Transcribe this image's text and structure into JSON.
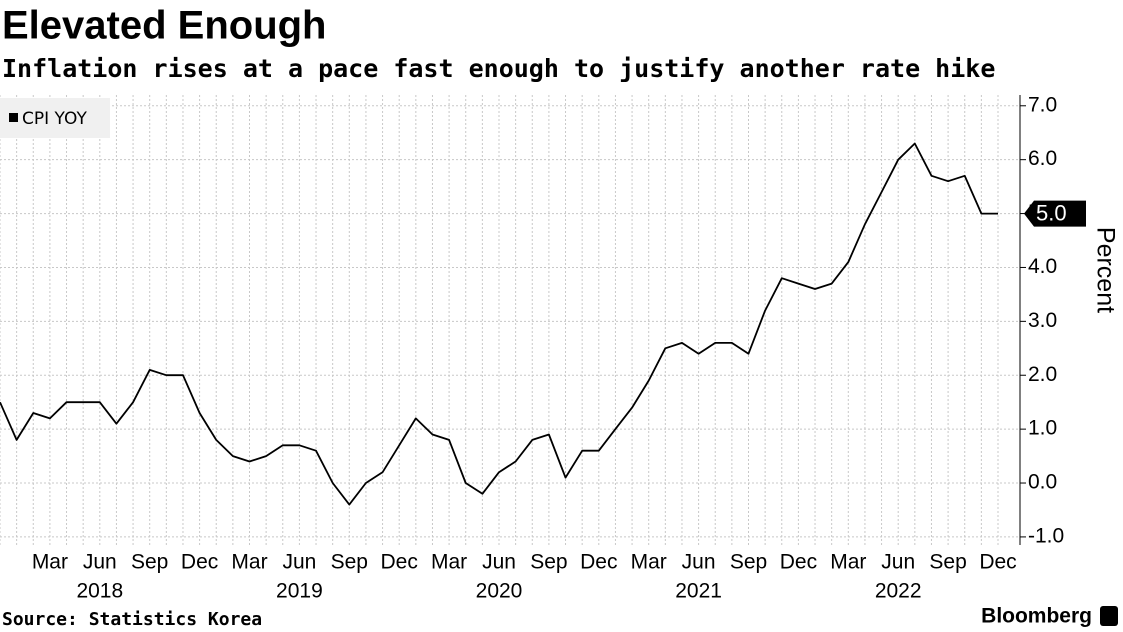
{
  "chart_data": {
    "type": "line",
    "title": "Elevated Enough",
    "subtitle": "Inflation rises at a pace fast enough to justify another rate hike",
    "categories": [
      null,
      null,
      null,
      "Mar",
      null,
      null,
      "Jun",
      null,
      null,
      "Sep",
      null,
      null,
      "Dec",
      null,
      null,
      "Mar",
      null,
      null,
      "Jun",
      null,
      null,
      "Sep",
      null,
      null,
      "Dec",
      null,
      null,
      "Mar",
      null,
      null,
      "Jun",
      null,
      null,
      "Sep",
      null,
      null,
      "Dec",
      null,
      null,
      "Mar",
      null,
      null,
      "Jun",
      null,
      null,
      "Sep",
      null,
      null,
      "Dec",
      null,
      null,
      "Mar",
      null,
      null,
      "Jun",
      null,
      null,
      "Sep",
      null,
      null,
      "Dec"
    ],
    "x_groups": [
      "2018",
      "2019",
      "2020",
      "2021",
      "2022"
    ],
    "series": [
      {
        "name": "CPI YOY",
        "color": "#000000",
        "values": [
          1.5,
          0.8,
          1.3,
          1.2,
          1.5,
          1.5,
          1.5,
          1.1,
          1.5,
          2.1,
          2.0,
          2.0,
          1.3,
          0.8,
          0.5,
          0.4,
          0.5,
          0.7,
          0.7,
          0.6,
          0.0,
          -0.4,
          0.0,
          0.2,
          0.7,
          1.2,
          0.9,
          0.8,
          0.0,
          -0.2,
          0.2,
          0.4,
          0.8,
          0.9,
          0.1,
          0.6,
          0.6,
          1.0,
          1.4,
          1.9,
          2.5,
          2.6,
          2.4,
          2.6,
          2.6,
          2.4,
          3.2,
          3.8,
          3.7,
          3.6,
          3.7,
          4.1,
          4.8,
          5.4,
          6.0,
          6.3,
          5.7,
          5.6,
          5.7,
          5.0,
          5.0
        ],
        "value_labels": [
          null,
          null,
          null,
          null,
          null,
          null,
          null,
          null,
          null,
          null,
          null,
          null,
          null,
          null,
          null,
          null,
          null,
          null,
          null,
          null,
          null,
          null,
          null,
          null,
          null,
          null,
          null,
          null,
          null,
          null,
          null,
          null,
          null,
          null,
          null,
          null,
          null,
          null,
          null,
          null,
          null,
          null,
          null,
          null,
          null,
          null,
          null,
          null,
          null,
          null,
          null,
          null,
          null,
          null,
          null,
          null,
          null,
          null,
          null,
          null,
          "5.0"
        ]
      }
    ],
    "ylim": [
      -1.15,
      7.2
    ],
    "yticks": [
      {
        "value": -1,
        "label": "-1.0"
      },
      {
        "value": 0,
        "label": "0.0"
      },
      {
        "value": 1,
        "label": "1.0"
      },
      {
        "value": 2,
        "label": "2.0"
      },
      {
        "value": 3,
        "label": "3.0"
      },
      {
        "value": 4,
        "label": "4.0"
      },
      {
        "value": 5,
        "label": "5.0"
      },
      {
        "value": 6,
        "label": "6.0"
      },
      {
        "value": 7,
        "label": "7.0"
      }
    ],
    "y_axis_label": "Percent",
    "y_axis_side": "right",
    "grid": true,
    "legend": "top-left",
    "source": "Source: Statistics Korea",
    "brand": "Bloomberg"
  }
}
